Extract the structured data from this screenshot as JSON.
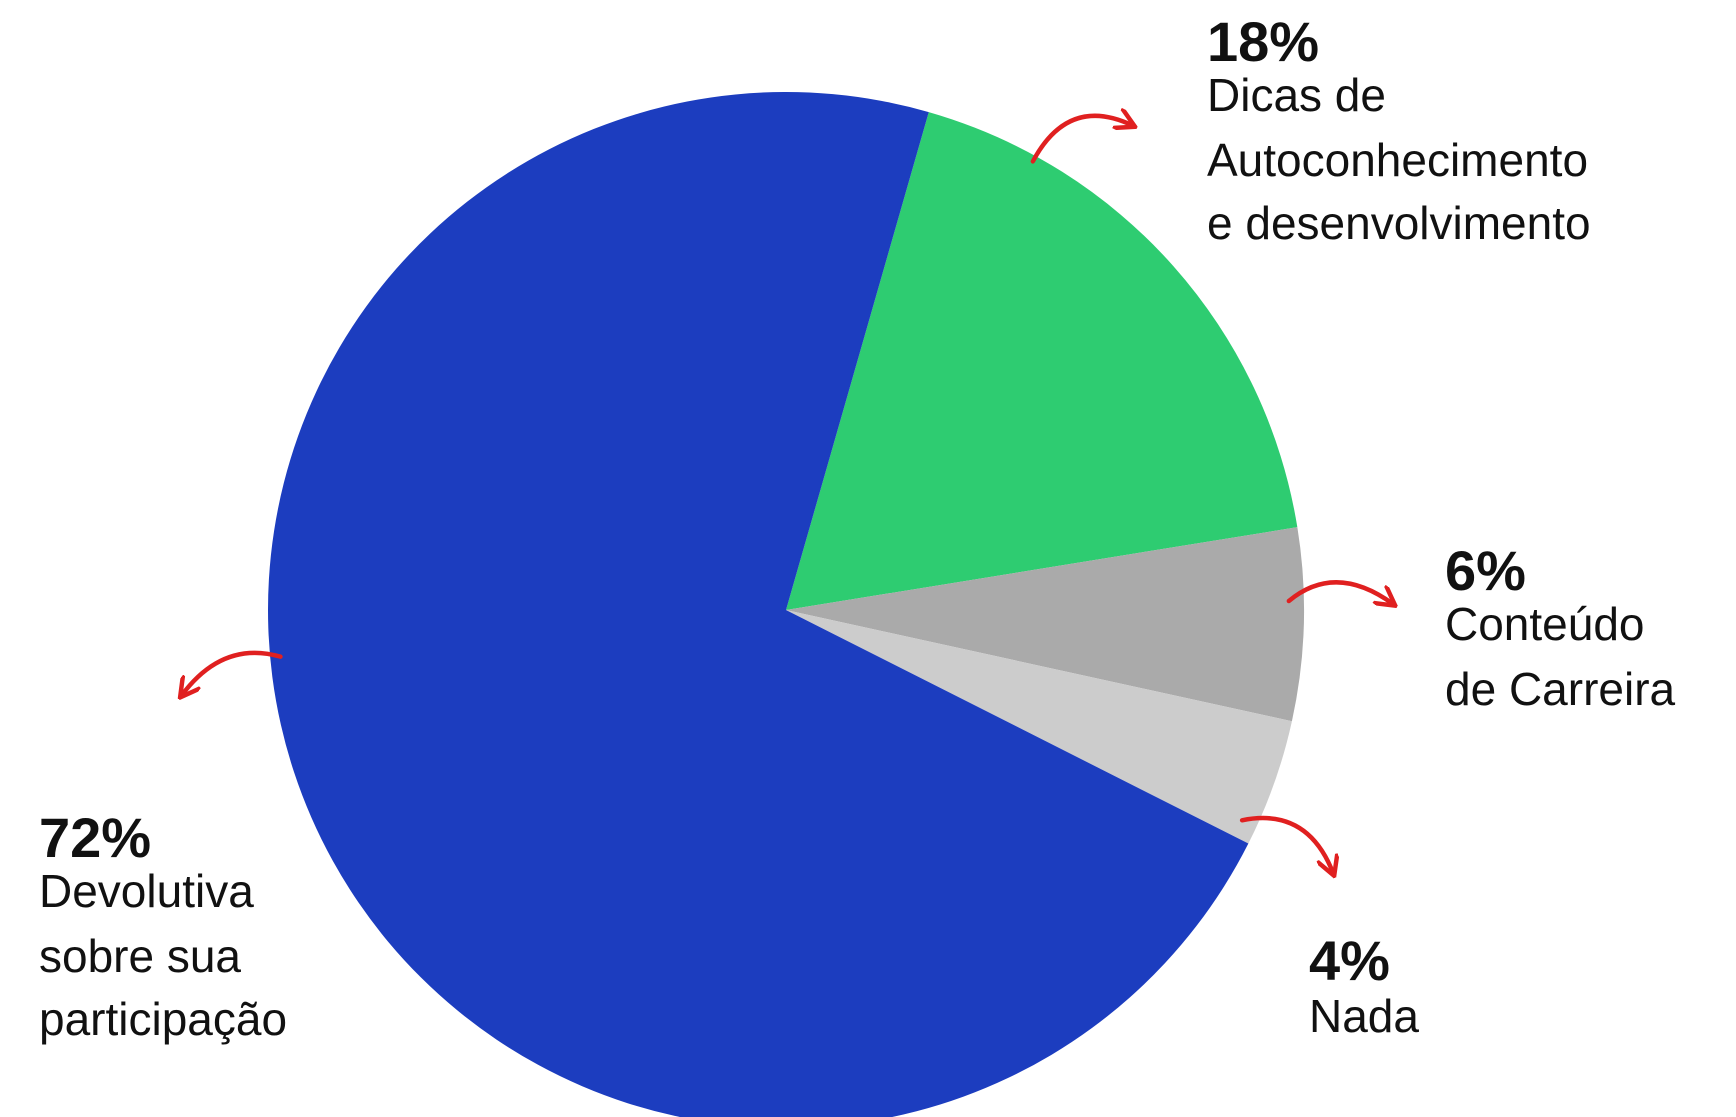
{
  "chart_data": {
    "type": "pie",
    "categories": [
      [
        "Dicas de",
        "Autoconhecimento",
        "e desenvolvimento"
      ],
      [
        "Conteúdo",
        "de Carreira"
      ],
      [
        "Nada"
      ],
      [
        "Devolutiva",
        "sobre sua",
        "participação"
      ]
    ],
    "values": [
      18,
      6,
      4,
      72
    ],
    "value_labels": [
      "18%",
      "6%",
      "4%",
      "72%"
    ],
    "colors": [
      "#2ecc71",
      "#aaaaaa",
      "#cccccc",
      "#1c3dbf"
    ]
  }
}
